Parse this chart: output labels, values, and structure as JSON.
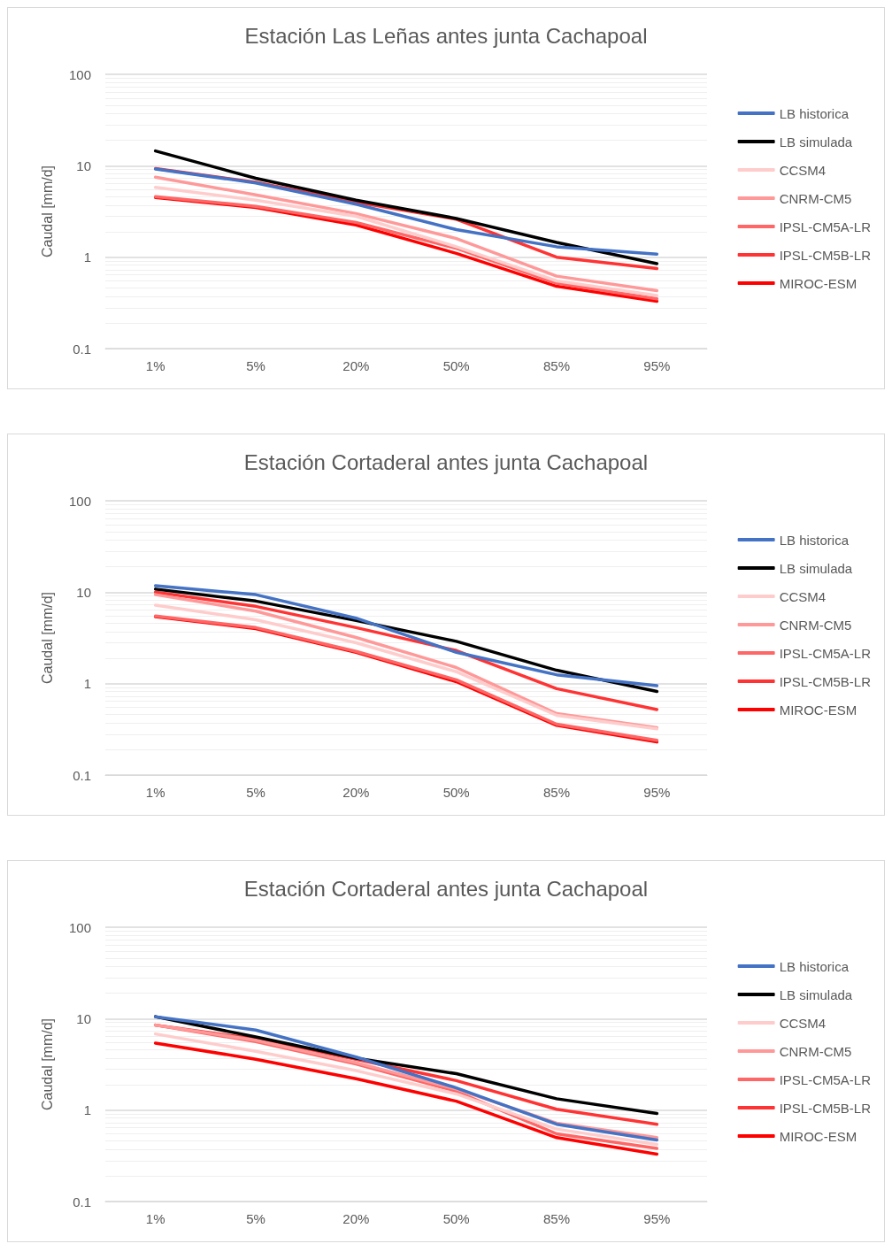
{
  "chart_data": [
    {
      "type": "line",
      "title": "Estación Las Leñas antes junta Cachapoal",
      "ylabel": "Caudal [mm/d]",
      "categories": [
        "1%",
        "5%",
        "20%",
        "50%",
        "85%",
        "95%"
      ],
      "log": "y",
      "ylim": [
        0.1,
        100
      ],
      "yticks": [
        0.1,
        1,
        10,
        100
      ],
      "grid": "y",
      "legend": "right",
      "marker": "none",
      "line_style": "solid",
      "series": [
        {
          "name": "LB historica",
          "color": "#4472c4",
          "values": [
            9.2,
            6.5,
            3.8,
            2.0,
            1.3,
            1.08
          ]
        },
        {
          "name": "LB simulada",
          "color": "#000000",
          "values": [
            14.5,
            7.3,
            4.2,
            2.65,
            1.45,
            0.85
          ]
        },
        {
          "name": "CCSM4",
          "color": "#ffcccc",
          "values": [
            5.8,
            4.2,
            2.8,
            1.3,
            0.55,
            0.38
          ]
        },
        {
          "name": "CNRM-CM5",
          "color": "#ff9999",
          "values": [
            7.5,
            4.8,
            3.0,
            1.6,
            0.62,
            0.43
          ]
        },
        {
          "name": "IPSL-CM5A-LR",
          "color": "#ff6666",
          "values": [
            4.6,
            3.6,
            2.4,
            1.25,
            0.52,
            0.35
          ]
        },
        {
          "name": "IPSL-CM5B-LR",
          "color": "#ff3333",
          "values": [
            9.3,
            6.6,
            4.0,
            2.6,
            1.0,
            0.75
          ]
        },
        {
          "name": "MIROC-ESM",
          "color": "#ff0000",
          "values": [
            4.5,
            3.5,
            2.25,
            1.1,
            0.48,
            0.33
          ]
        }
      ]
    },
    {
      "type": "line",
      "title": "Estación Cortaderal antes junta Cachapoal",
      "ylabel": "Caudal [mm/d]",
      "categories": [
        "1%",
        "5%",
        "20%",
        "50%",
        "85%",
        "95%"
      ],
      "log": "y",
      "ylim": [
        0.1,
        100
      ],
      "yticks": [
        0.1,
        1,
        10,
        100
      ],
      "grid": "y",
      "legend": "right",
      "marker": "none",
      "line_style": "solid",
      "series": [
        {
          "name": "LB historica",
          "color": "#4472c4",
          "values": [
            11.8,
            9.4,
            5.2,
            2.2,
            1.25,
            0.95
          ]
        },
        {
          "name": "LB simulada",
          "color": "#000000",
          "values": [
            10.8,
            8.0,
            4.9,
            2.9,
            1.4,
            0.82
          ]
        },
        {
          "name": "CCSM4",
          "color": "#ffcccc",
          "values": [
            7.2,
            5.0,
            2.8,
            1.35,
            0.45,
            0.32
          ]
        },
        {
          "name": "CNRM-CM5",
          "color": "#ff9999",
          "values": [
            9.4,
            6.2,
            3.2,
            1.5,
            0.47,
            0.33
          ]
        },
        {
          "name": "IPSL-CM5A-LR",
          "color": "#ff6666",
          "values": [
            5.5,
            4.1,
            2.25,
            1.1,
            0.36,
            0.24
          ]
        },
        {
          "name": "IPSL-CM5B-LR",
          "color": "#ff3333",
          "values": [
            10.0,
            7.0,
            4.1,
            2.3,
            0.88,
            0.52
          ]
        },
        {
          "name": "MIROC-ESM",
          "color": "#ff0000",
          "values": [
            5.4,
            4.0,
            2.2,
            1.05,
            0.35,
            0.23
          ]
        }
      ]
    },
    {
      "type": "line",
      "title": "Estación Cortaderal antes junta Cachapoal",
      "ylabel": "Caudal [mm/d]",
      "categories": [
        "1%",
        "5%",
        "20%",
        "50%",
        "85%",
        "95%"
      ],
      "log": "y",
      "ylim": [
        0.1,
        100
      ],
      "yticks": [
        0.1,
        1,
        10,
        100
      ],
      "grid": "y",
      "legend": "right",
      "marker": "none",
      "line_style": "solid",
      "series": [
        {
          "name": "LB historica",
          "color": "#4472c4",
          "values": [
            10.5,
            7.5,
            3.8,
            1.75,
            0.7,
            0.47
          ]
        },
        {
          "name": "LB simulada",
          "color": "#000000",
          "values": [
            10.5,
            6.3,
            3.7,
            2.5,
            1.33,
            0.92
          ]
        },
        {
          "name": "CCSM4",
          "color": "#ffcccc",
          "values": [
            6.8,
            4.4,
            2.7,
            1.5,
            0.62,
            0.42
          ]
        },
        {
          "name": "CNRM-CM5",
          "color": "#ff9999",
          "values": [
            8.5,
            5.8,
            3.3,
            1.7,
            0.72,
            0.5
          ]
        },
        {
          "name": "IPSL-CM5A-LR",
          "color": "#ff6666",
          "values": [
            8.5,
            5.6,
            3.2,
            1.6,
            0.55,
            0.38
          ]
        },
        {
          "name": "IPSL-CM5B-LR",
          "color": "#ff3333",
          "values": [
            8.5,
            6.0,
            3.6,
            2.1,
            1.02,
            0.7
          ]
        },
        {
          "name": "MIROC-ESM",
          "color": "#ff0000",
          "values": [
            5.4,
            3.6,
            2.2,
            1.25,
            0.5,
            0.33
          ]
        }
      ]
    }
  ]
}
